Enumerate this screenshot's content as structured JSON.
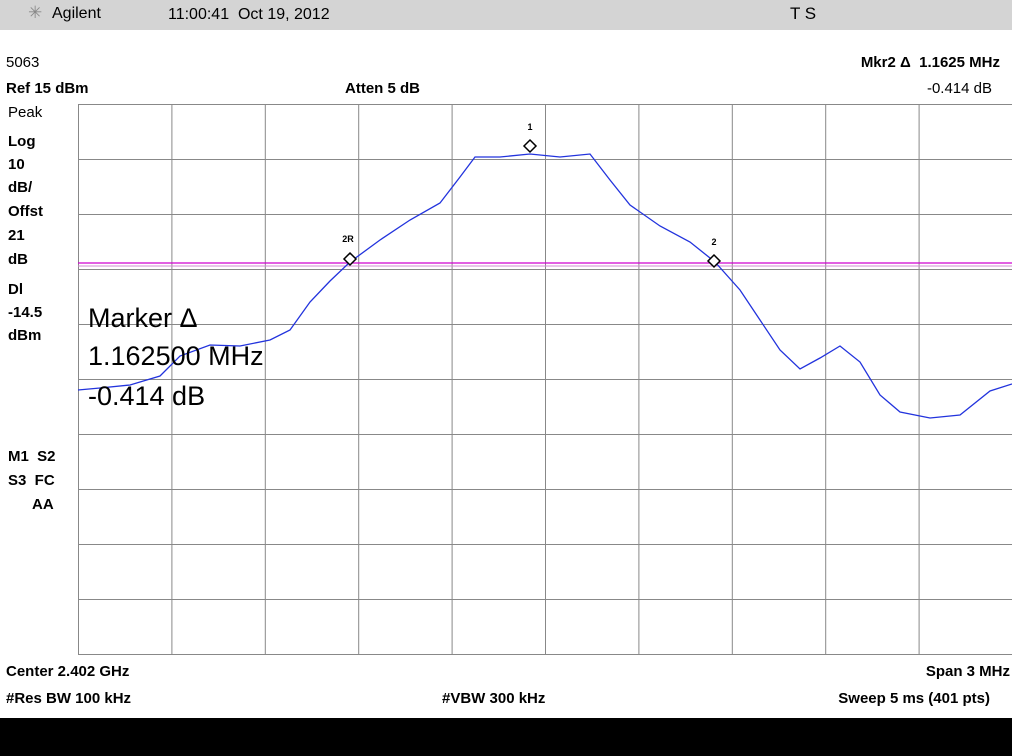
{
  "header": {
    "brand": "Agilent",
    "datetime": "11:00:41  Oct 19, 2012",
    "status": "T S"
  },
  "info": {
    "id": "5063",
    "ref": "Ref 15 dBm",
    "atten": "Atten 5 dB",
    "marker_readout": "Mkr2 Δ  1.1625 MHz",
    "marker_value": "-0.414 dB"
  },
  "left_panel": [
    "Peak",
    "Log",
    "10",
    "dB/",
    "Offst",
    "21",
    "dB",
    "Dl",
    "-14.5",
    "dBm",
    "M1  S2",
    "S3  FC",
    "AA"
  ],
  "overlay": [
    "Marker Δ",
    "1.162500 MHz",
    "-0.414 dB"
  ],
  "markers": [
    "1",
    "2R",
    "2"
  ],
  "footer": {
    "center": "Center 2.402 GHz",
    "span": "Span 3 MHz",
    "res_bw": "#Res BW 100 kHz",
    "vbw": "#VBW 300 kHz",
    "sweep": "Sweep 5 ms (401 pts)"
  }
}
